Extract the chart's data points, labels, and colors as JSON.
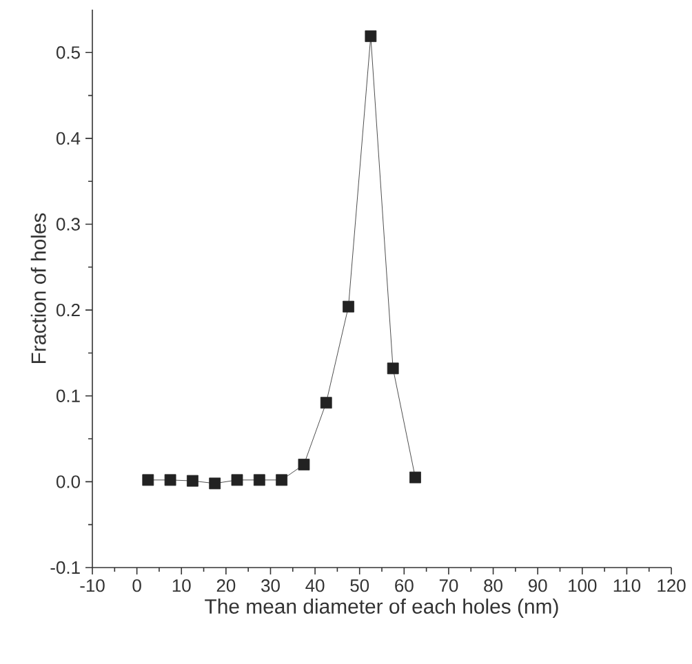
{
  "chart_data": {
    "type": "line",
    "xlabel": "The mean diameter of each holes (nm)",
    "ylabel": "Fraction of holes",
    "x": [
      2.5,
      7.5,
      12.5,
      17.5,
      22.5,
      27.5,
      32.5,
      37.5,
      42.5,
      47.5,
      52.5,
      57.5,
      62.5
    ],
    "series": [
      {
        "color": "#222222",
        "values": [
          0.002,
          0.002,
          0.001,
          -0.002,
          0.002,
          0.002,
          0.002,
          0.02,
          0.092,
          0.204,
          0.519,
          0.132,
          0.005
        ]
      }
    ],
    "xlim": [
      -10,
      120
    ],
    "ylim": [
      -0.1,
      0.55
    ],
    "xticks": [
      -10,
      0,
      10,
      20,
      30,
      40,
      50,
      60,
      70,
      80,
      90,
      100,
      110,
      120
    ],
    "yticks": [
      -0.1,
      {
        "value": 0,
        "label": "0.0"
      },
      0.1,
      0.2,
      0.3,
      0.4,
      0.5
    ],
    "marker": "square",
    "line_style": "solid"
  }
}
